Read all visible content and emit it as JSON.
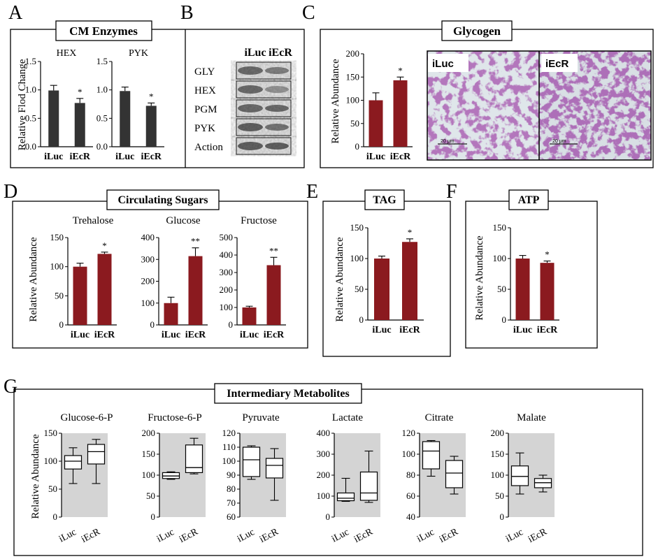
{
  "panel_letters": {
    "A": "A",
    "B": "B",
    "C": "C",
    "D": "D",
    "E": "E",
    "F": "F",
    "G": "G"
  },
  "box_titles": {
    "A": "CM Enzymes",
    "C": "Glycogen",
    "D": "Circulating Sugars",
    "E": "TAG",
    "F": "ATP",
    "G": "Intermediary Metabolites"
  },
  "colors": {
    "dark_bar": "#333333",
    "red_bar": "#8b1a1f",
    "gray_bg": "#d4d4d4"
  },
  "chart_data": [
    {
      "id": "A_HEX",
      "type": "bar",
      "title": "HEX",
      "ylabel": "Relative Flod Change",
      "ylim": [
        0,
        1.5
      ],
      "ticks": [
        0,
        0.5,
        1.0,
        1.5
      ],
      "tick_labels": [
        "0.0",
        "0.5",
        "1.0",
        "1.5"
      ],
      "categories": [
        "iLuc",
        "iEcR"
      ],
      "values": [
        0.99,
        0.77
      ],
      "errors": [
        0.09,
        0.08
      ],
      "sig": [
        "",
        "*"
      ]
    },
    {
      "id": "A_PYK",
      "type": "bar",
      "title": "PYK",
      "ylabel": "",
      "ylim": [
        0,
        1.5
      ],
      "ticks": [
        0,
        0.5,
        1.0,
        1.5
      ],
      "tick_labels": [
        "0.0",
        "0.5",
        "1.0",
        "1.5"
      ],
      "categories": [
        "iLuc",
        "iEcR"
      ],
      "values": [
        0.98,
        0.72
      ],
      "errors": [
        0.07,
        0.05
      ],
      "sig": [
        "",
        "*"
      ]
    },
    {
      "id": "C_glycogen",
      "type": "bar",
      "title": "",
      "ylabel": "Relative Abundance",
      "ylim": [
        0,
        200
      ],
      "ticks": [
        0,
        50,
        100,
        150,
        200
      ],
      "tick_labels": [
        "0",
        "50",
        "100",
        "150",
        "200"
      ],
      "categories": [
        "iLuc",
        "iEcR"
      ],
      "values": [
        100,
        143
      ],
      "errors": [
        16,
        7
      ],
      "sig": [
        "",
        "*"
      ]
    },
    {
      "id": "D_trehalose",
      "type": "bar",
      "title": "Trehalose",
      "ylabel": "Relative Abundance",
      "ylim": [
        0,
        150
      ],
      "ticks": [
        0,
        50,
        100,
        150
      ],
      "tick_labels": [
        "0",
        "50",
        "100",
        "150"
      ],
      "categories": [
        "iLuc",
        "iEcR"
      ],
      "values": [
        100,
        122
      ],
      "errors": [
        6,
        3
      ],
      "sig": [
        "",
        "*"
      ]
    },
    {
      "id": "D_glucose",
      "type": "bar",
      "title": "Glucose",
      "ylabel": "",
      "ylim": [
        0,
        400
      ],
      "ticks": [
        0,
        100,
        200,
        300,
        400
      ],
      "tick_labels": [
        "0",
        "100",
        "200",
        "300",
        "400"
      ],
      "categories": [
        "iLuc",
        "iEcR"
      ],
      "values": [
        100,
        315
      ],
      "errors": [
        27,
        38
      ],
      "sig": [
        "",
        "**"
      ]
    },
    {
      "id": "D_fructose",
      "type": "bar",
      "title": "Fructose",
      "ylabel": "",
      "ylim": [
        0,
        500
      ],
      "ticks": [
        0,
        100,
        200,
        300,
        400,
        500
      ],
      "tick_labels": [
        "0",
        "100",
        "200",
        "300",
        "400",
        "500"
      ],
      "categories": [
        "iLuc",
        "iEcR"
      ],
      "values": [
        100,
        342
      ],
      "errors": [
        7,
        45
      ],
      "sig": [
        "",
        "**"
      ]
    },
    {
      "id": "E_TAG",
      "type": "bar",
      "title": "",
      "ylabel": "Relative Abundance",
      "ylim": [
        0,
        150
      ],
      "ticks": [
        0,
        50,
        100,
        150
      ],
      "tick_labels": [
        "0",
        "50",
        "100",
        "150"
      ],
      "categories": [
        "iLuc",
        "iEcR"
      ],
      "values": [
        100,
        127
      ],
      "errors": [
        4,
        5
      ],
      "sig": [
        "",
        "*"
      ]
    },
    {
      "id": "F_ATP",
      "type": "bar",
      "title": "",
      "ylabel": "Relative Abundance",
      "ylim": [
        0,
        150
      ],
      "ticks": [
        0,
        50,
        100,
        150
      ],
      "tick_labels": [
        "0",
        "50",
        "100",
        "150"
      ],
      "categories": [
        "iLuc",
        "iEcR"
      ],
      "values": [
        100,
        93
      ],
      "errors": [
        5,
        3
      ],
      "sig": [
        "",
        "*"
      ]
    },
    {
      "id": "G_g6p",
      "type": "box",
      "title": "Glucose-6-P",
      "ylabel": "Relative Abundance",
      "ylim": [
        0,
        150
      ],
      "ticks": [
        0,
        50,
        100,
        150
      ],
      "tick_labels": [
        "0",
        "50",
        "100",
        "150"
      ],
      "categories": [
        "iLuc",
        "iEcR"
      ],
      "boxes": [
        [
          60,
          86,
          100,
          110,
          124
        ],
        [
          60,
          95,
          117,
          130,
          139
        ]
      ]
    },
    {
      "id": "G_f6p",
      "type": "box",
      "title": "Fructose-6-P",
      "ylabel": "",
      "ylim": [
        0,
        200
      ],
      "ticks": [
        0,
        50,
        100,
        150,
        200
      ],
      "tick_labels": [
        "0",
        "50",
        "100",
        "150",
        "200"
      ],
      "categories": [
        "iLuc",
        "iEcR"
      ],
      "boxes": [
        [
          90,
          92,
          98,
          106,
          108
        ],
        [
          103,
          106,
          118,
          172,
          188
        ]
      ]
    },
    {
      "id": "G_pyruvate",
      "type": "box",
      "title": "Pyruvate",
      "ylabel": "",
      "ylim": [
        60,
        120
      ],
      "ticks": [
        60,
        70,
        80,
        90,
        100,
        110,
        120
      ],
      "tick_labels": [
        "60",
        "70",
        "80",
        "90",
        "100",
        "110",
        "120"
      ],
      "categories": [
        "iLuc",
        "iEcR"
      ],
      "boxes": [
        [
          87,
          89,
          101,
          110,
          111
        ],
        [
          72,
          88,
          97,
          102,
          109
        ]
      ]
    },
    {
      "id": "G_lactate",
      "type": "box",
      "title": "Lactate",
      "ylabel": "",
      "ylim": [
        0,
        400
      ],
      "ticks": [
        0,
        100,
        200,
        300,
        400
      ],
      "tick_labels": [
        "0",
        "100",
        "200",
        "300",
        "400"
      ],
      "categories": [
        "iLuc",
        "iEcR"
      ],
      "boxes": [
        [
          75,
          78,
          90,
          115,
          185
        ],
        [
          70,
          80,
          115,
          215,
          315
        ]
      ]
    },
    {
      "id": "G_citrate",
      "type": "box",
      "title": "Citrate",
      "ylabel": "",
      "ylim": [
        40,
        120
      ],
      "ticks": [
        40,
        60,
        80,
        100,
        120
      ],
      "tick_labels": [
        "40",
        "60",
        "80",
        "100",
        "120"
      ],
      "categories": [
        "iLuc",
        "iEcR"
      ],
      "boxes": [
        [
          79,
          86,
          103,
          112,
          113
        ],
        [
          62,
          68,
          82,
          94,
          98
        ]
      ]
    },
    {
      "id": "G_malate",
      "type": "box",
      "title": "Malate",
      "ylabel": "",
      "ylim": [
        0,
        200
      ],
      "ticks": [
        0,
        50,
        100,
        150,
        200
      ],
      "tick_labels": [
        "0",
        "50",
        "100",
        "150",
        "200"
      ],
      "categories": [
        "iLuc",
        "iEcR"
      ],
      "boxes": [
        [
          55,
          75,
          97,
          122,
          153
        ],
        [
          60,
          70,
          82,
          92,
          100
        ]
      ]
    }
  ],
  "blot": {
    "header": [
      "iLuc",
      "iEcR"
    ],
    "rows": [
      "GLY",
      "HEX",
      "PGM",
      "PYK",
      "Action"
    ]
  },
  "micrograph": {
    "labels": [
      "iLuc",
      "iEcR"
    ],
    "scale": "20 μm"
  }
}
